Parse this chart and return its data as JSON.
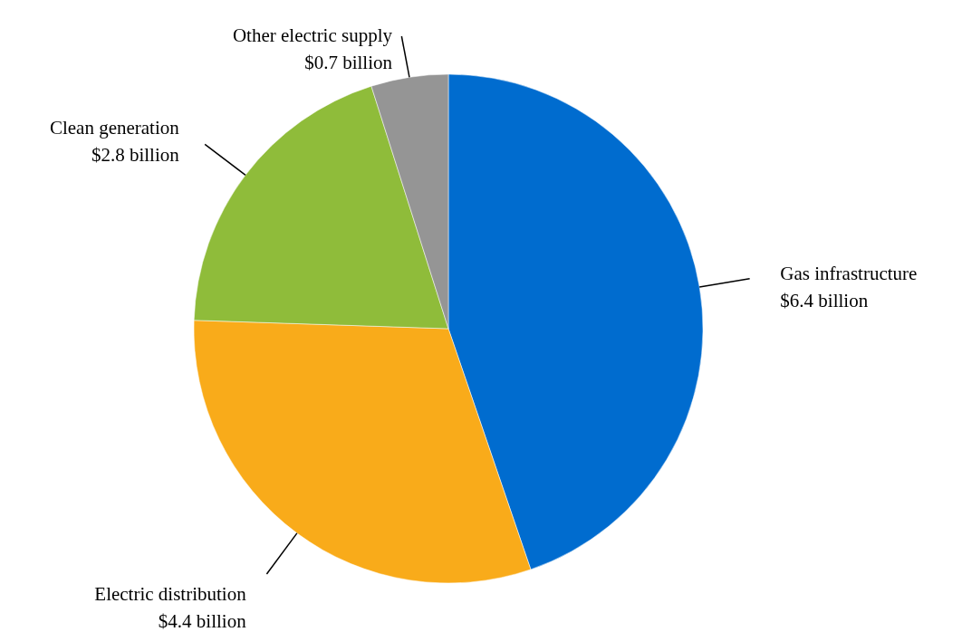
{
  "chart_data": {
    "type": "pie",
    "categories": [
      "Gas infrastructure",
      "Electric distribution",
      "Clean generation",
      "Other electric supply"
    ],
    "values": [
      6.4,
      4.4,
      2.8,
      0.7
    ],
    "colors": [
      "#006ccf",
      "#f9ab1a",
      "#8fbc3a",
      "#959595"
    ],
    "value_labels": [
      "$6.4 billion",
      "$4.4 billion",
      "$2.8 billion",
      "$0.7 billion"
    ]
  }
}
